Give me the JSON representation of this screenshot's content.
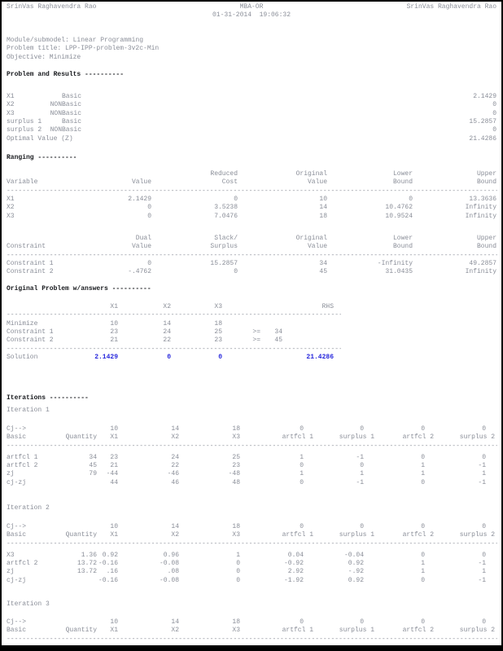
{
  "header": {
    "left": "SrinVas Raghavendra Rao",
    "center_title": "MBA-OR",
    "datetime": "01-31-2014  19:06:32",
    "right": "SrinVas Raghavendra Rao"
  },
  "meta": {
    "module": "Module/submodel: Linear Programming",
    "problem_title": "Problem title: LPP-IPP-problem-3v2c-Min",
    "objective": "Objective: Minimize"
  },
  "headings": {
    "problem_results": "Problem and Results ----------",
    "ranging": "Ranging ----------",
    "original_problem": "Original Problem w/answers ----------",
    "iterations": "Iterations ----------"
  },
  "colors": {
    "text_gray": "#8a8e98",
    "heading_black": "#17191d",
    "solution_blue": "#2626dc"
  },
  "problem_results": {
    "rows": [
      {
        "cells": [
          "X1",
          "Basic",
          "2.1429"
        ]
      },
      {
        "cells": [
          "X2",
          "NONBasic",
          "0"
        ]
      },
      {
        "cells": [
          "X3",
          "NONBasic",
          "0"
        ]
      },
      {
        "cells": [
          "surplus 1",
          "Basic",
          "15.2857"
        ]
      },
      {
        "cells": [
          "surplus 2",
          "NONBasic",
          "0"
        ]
      },
      {
        "cells": [
          "Optimal Value (Z)",
          "",
          "21.4286"
        ]
      }
    ]
  },
  "ranging": {
    "variables": {
      "rows": [
        {
          "cells": [
            "",
            "",
            "Reduced",
            "Original",
            "Lower",
            "Upper"
          ]
        },
        {
          "cells": [
            "Variable",
            "Value",
            "Cost",
            "Value",
            "Bound",
            "Bound"
          ]
        },
        {
          "sep": true
        },
        {
          "cells": [
            "X1",
            "2.1429",
            "0",
            "10",
            "0",
            "13.3636"
          ]
        },
        {
          "cells": [
            "X2",
            "0",
            "3.5238",
            "14",
            "10.4762",
            "Infinity"
          ]
        },
        {
          "cells": [
            "X3",
            "0",
            "7.0476",
            "18",
            "10.9524",
            "Infinity"
          ]
        }
      ]
    },
    "constraints": {
      "rows": [
        {
          "cells": [
            "",
            "Dual",
            "Slack/",
            "Original",
            "Lower",
            "Upper"
          ]
        },
        {
          "cells": [
            "Constraint",
            "Value",
            "Surplus",
            "Value",
            "Bound",
            "Bound"
          ]
        },
        {
          "sep": true
        },
        {
          "cells": [
            "Constraint 1",
            "0",
            "15.2857",
            "34",
            "-Infinity",
            "49.2857"
          ]
        },
        {
          "cells": [
            "Constraint 2",
            "-.4762",
            "0",
            "45",
            "31.0435",
            "Infinity"
          ]
        }
      ]
    }
  },
  "original_problem": {
    "rows": [
      {
        "cells": [
          "",
          "X1",
          "X2",
          "X3",
          "",
          "",
          "RHS"
        ]
      },
      {
        "sep": true
      },
      {
        "cells": [
          "Minimize",
          "10",
          "14",
          "18",
          "",
          "",
          ""
        ]
      },
      {
        "cells": [
          "Constraint 1",
          "23",
          "24",
          "25",
          ">=",
          "34",
          ""
        ]
      },
      {
        "cells": [
          "Constraint 2",
          "21",
          "22",
          "23",
          ">=",
          "45",
          ""
        ]
      },
      {
        "sep": true
      },
      {
        "cells": [
          "Solution",
          "2.1429",
          "0",
          "0",
          "",
          "",
          "21.4286"
        ],
        "cls": "solution"
      }
    ]
  },
  "iterations": {
    "iteration1_label": "Iteration 1",
    "iteration2_label": "Iteration 2",
    "iteration3_label": "Iteration 3",
    "it1": {
      "rows": [
        {
          "cells": [
            "Cj-->",
            "",
            "10",
            "14",
            "18",
            "0",
            "0",
            "0",
            "0"
          ]
        },
        {
          "cells": [
            "Basic",
            "Quantity",
            "X1",
            "X2",
            "X3",
            "artfcl 1",
            "surplus 1",
            "artfcl 2",
            "surplus 2"
          ],
          "h": true
        },
        {
          "sep": true
        },
        {
          "cells": [
            "artfcl 1",
            "34",
            "23",
            "24",
            "25",
            "1",
            "-1",
            "0",
            "0"
          ]
        },
        {
          "cells": [
            "artfcl 2",
            "45",
            "21",
            "22",
            "23",
            "0",
            "0",
            "1",
            "-1"
          ]
        },
        {
          "cells": [
            "zj",
            "79",
            "-44",
            "-46",
            "-48",
            "1",
            "1",
            "1",
            "1"
          ]
        },
        {
          "cells": [
            "cj-zj",
            "",
            "44",
            "46",
            "48",
            "0",
            "-1",
            "0",
            "-1"
          ]
        }
      ]
    },
    "it2": {
      "rows": [
        {
          "cells": [
            "Cj-->",
            "",
            "10",
            "14",
            "18",
            "0",
            "0",
            "0",
            "0"
          ]
        },
        {
          "cells": [
            "Basic",
            "Quantity",
            "X1",
            "X2",
            "X3",
            "artfcl 1",
            "surplus 1",
            "artfcl 2",
            "surplus 2"
          ],
          "h": true
        },
        {
          "sep": true
        },
        {
          "cells": [
            "X3",
            "1.36",
            "0.92",
            "0.96",
            "1",
            "0.04",
            "-0.04",
            "0",
            "0"
          ]
        },
        {
          "cells": [
            "artfcl 2",
            "13.72",
            "-0.16",
            "-0.08",
            "0",
            "-0.92",
            "0.92",
            "1",
            "-1"
          ]
        },
        {
          "cells": [
            "zj",
            "13.72",
            ".16",
            ".08",
            "0",
            "2.92",
            "-.92",
            "1",
            "1"
          ]
        },
        {
          "cells": [
            "cj-zj",
            "",
            "-0.16",
            "-0.08",
            "0",
            "-1.92",
            "0.92",
            "0",
            "-1"
          ]
        }
      ]
    },
    "it3": {
      "rows": [
        {
          "cells": [
            "Cj-->",
            "",
            "10",
            "14",
            "18",
            "0",
            "0",
            "0",
            "0"
          ]
        },
        {
          "cells": [
            "Basic",
            "Quantity",
            "X1",
            "X2",
            "X3",
            "artfcl 1",
            "surplus 1",
            "artfcl 2",
            "surplus 2"
          ],
          "h": true
        },
        {
          "sep": true
        }
      ]
    }
  }
}
